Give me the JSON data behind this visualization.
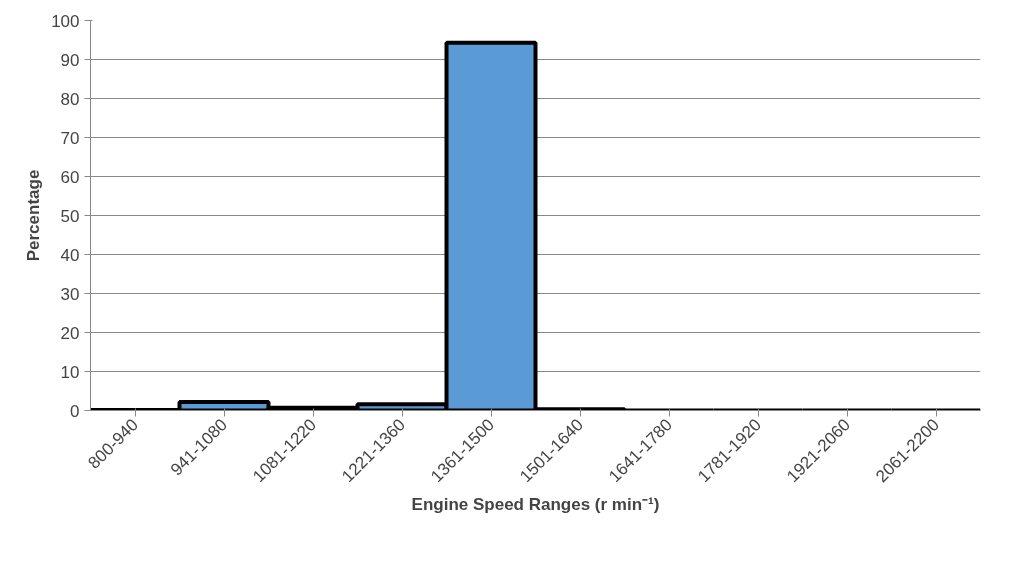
{
  "chart_data": {
    "type": "bar",
    "xlabel": "Engine Speed Ranges (r min⁻¹)",
    "ylabel": "Percentage",
    "categories": [
      "800-940",
      "941-1080",
      "1081-1220",
      "1221-1360",
      "1361-1500",
      "1501-1640",
      "1641-1780",
      "1781-1920",
      "1921-2060",
      "2061-2200"
    ],
    "values": [
      0.1,
      2.2,
      0.7,
      1.6,
      94.3,
      0.3,
      0,
      0,
      0,
      0
    ],
    "color": "#5b9bd5",
    "ylim": [
      0,
      100
    ],
    "yticks": [
      0,
      10,
      20,
      30,
      40,
      50,
      60,
      70,
      80,
      90,
      100
    ],
    "grid": "y"
  }
}
